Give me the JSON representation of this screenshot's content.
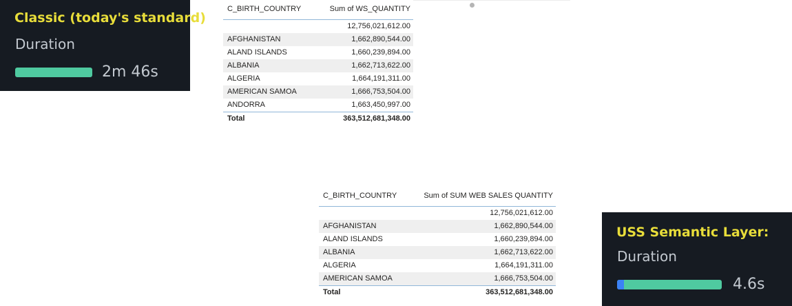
{
  "classic_panel": {
    "title": "Classic (today's standard)",
    "label": "Duration",
    "value": "2m 46s",
    "progress_fraction": 1.0,
    "accent_color": "#e8dd3a",
    "bar_color": "#4fcaa0"
  },
  "uss_panel": {
    "title": "USS Semantic Layer:",
    "label": "Duration",
    "value": "4.6s",
    "progress_fraction": 1.0,
    "accent_color": "#e8dd3a",
    "bar_color": "#4fcaa0",
    "bar_start_color": "#3b82f6"
  },
  "table_top": {
    "columns": [
      "C_BIRTH_COUNTRY",
      "Sum of WS_QUANTITY"
    ],
    "rows": [
      {
        "country": "",
        "value": "12,756,021,612.00"
      },
      {
        "country": "AFGHANISTAN",
        "value": "1,662,890,544.00"
      },
      {
        "country": "ALAND ISLANDS",
        "value": "1,660,239,894.00"
      },
      {
        "country": "ALBANIA",
        "value": "1,662,713,622.00"
      },
      {
        "country": "ALGERIA",
        "value": "1,664,191,311.00"
      },
      {
        "country": "AMERICAN SAMOA",
        "value": "1,666,753,504.00"
      },
      {
        "country": "ANDORRA",
        "value": "1,663,450,997.00"
      }
    ],
    "total_label": "Total",
    "total_value": "363,512,681,348.00"
  },
  "table_bottom": {
    "columns": [
      "C_BIRTH_COUNTRY",
      "Sum of SUM WEB SALES QUANTITY"
    ],
    "rows": [
      {
        "country": "",
        "value": "12,756,021,612.00"
      },
      {
        "country": "AFGHANISTAN",
        "value": "1,662,890,544.00"
      },
      {
        "country": "ALAND ISLANDS",
        "value": "1,660,239,894.00"
      },
      {
        "country": "ALBANIA",
        "value": "1,662,713,622.00"
      },
      {
        "country": "ALGERIA",
        "value": "1,664,191,311.00"
      },
      {
        "country": "AMERICAN SAMOA",
        "value": "1,666,753,504.00"
      }
    ],
    "total_label": "Total",
    "total_value": "363,512,681,348.00"
  }
}
